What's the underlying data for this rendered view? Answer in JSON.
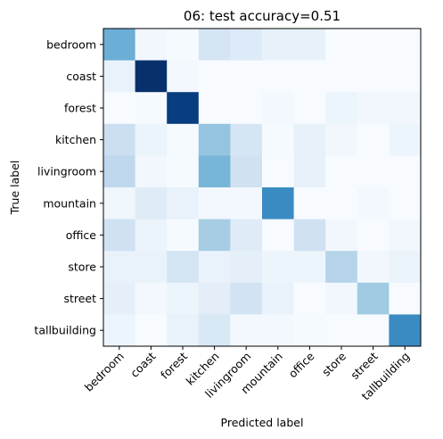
{
  "chart_data": {
    "type": "heatmap",
    "title": "06: test accuracy=0.51",
    "xlabel": "Predicted label",
    "ylabel": "True label",
    "x_categories": [
      "bedroom",
      "coast",
      "forest",
      "kitchen",
      "livingroom",
      "mountain",
      "office",
      "store",
      "street",
      "tallbuilding"
    ],
    "y_categories": [
      "bedroom",
      "coast",
      "forest",
      "kitchen",
      "livingroom",
      "mountain",
      "office",
      "store",
      "street",
      "tallbuilding"
    ],
    "colormap": "Blues",
    "vmin": 0,
    "vmax": 1,
    "values": [
      [
        0.5,
        0.03,
        0.01,
        0.17,
        0.13,
        0.08,
        0.08,
        0.0,
        0.0,
        0.0
      ],
      [
        0.07,
        1.0,
        0.02,
        0.0,
        0.0,
        0.0,
        0.0,
        0.0,
        0.0,
        0.0
      ],
      [
        0.0,
        0.01,
        0.95,
        0.0,
        0.0,
        0.02,
        0.0,
        0.05,
        0.03,
        0.03
      ],
      [
        0.22,
        0.06,
        0.01,
        0.4,
        0.17,
        0.01,
        0.08,
        0.03,
        0.0,
        0.05
      ],
      [
        0.27,
        0.03,
        0.01,
        0.47,
        0.2,
        0.0,
        0.08,
        0.0,
        0.0,
        0.0
      ],
      [
        0.04,
        0.12,
        0.07,
        0.02,
        0.02,
        0.65,
        0.0,
        0.0,
        0.02,
        0.0
      ],
      [
        0.2,
        0.06,
        0.01,
        0.35,
        0.12,
        0.0,
        0.2,
        0.03,
        0.0,
        0.03
      ],
      [
        0.07,
        0.07,
        0.18,
        0.07,
        0.09,
        0.05,
        0.05,
        0.3,
        0.03,
        0.06
      ],
      [
        0.09,
        0.02,
        0.05,
        0.1,
        0.19,
        0.07,
        0.0,
        0.03,
        0.37,
        0.0
      ],
      [
        0.05,
        0.0,
        0.07,
        0.15,
        0.02,
        0.02,
        0.01,
        0.0,
        0.0,
        0.65
      ]
    ]
  }
}
